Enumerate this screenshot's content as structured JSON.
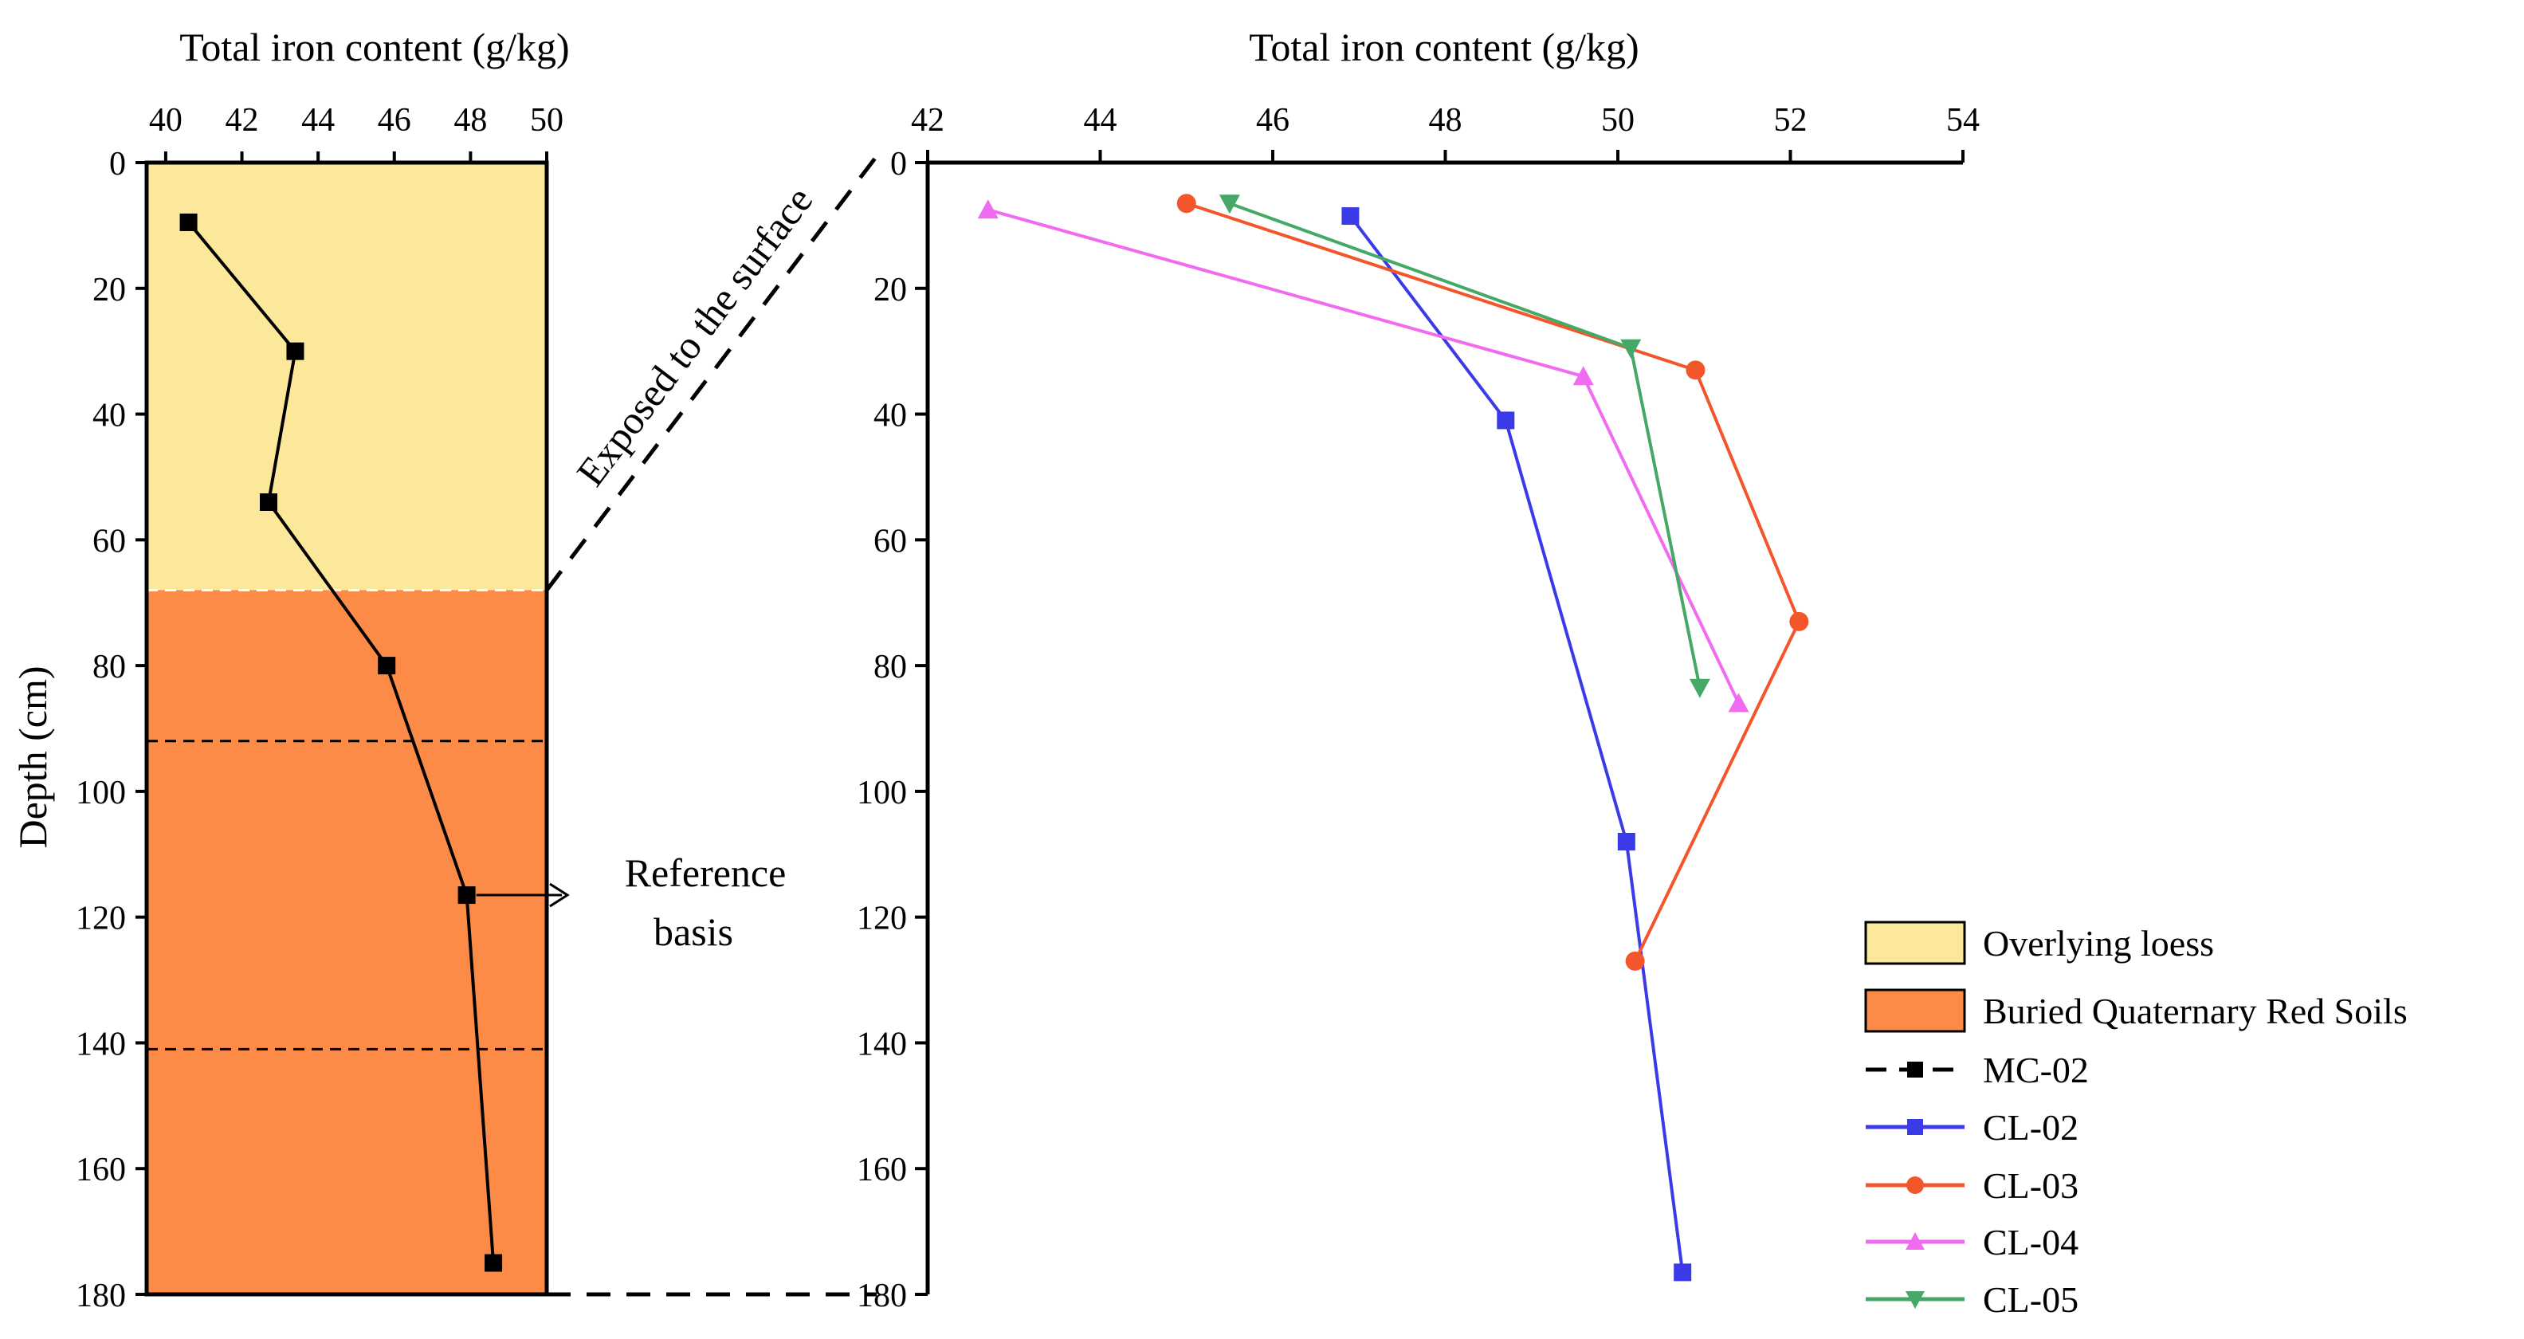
{
  "chart_data": [
    {
      "id": "left",
      "type": "line",
      "xlabel": "Total iron content (g/kg)",
      "ylabel": "Depth (cm)",
      "xlim": [
        39.5,
        50
      ],
      "ylim": [
        0,
        180
      ],
      "xticks": [
        40,
        42,
        44,
        46,
        48,
        50
      ],
      "yticks": [
        0,
        20,
        40,
        60,
        80,
        100,
        120,
        140,
        160,
        180
      ],
      "bands": [
        {
          "name": "Overlying loess",
          "from": 0,
          "to": 68,
          "color": "#FCE89A"
        },
        {
          "name": "Buried Quaternary Red Soils",
          "from": 68,
          "to": 180,
          "color": "#FC8B48"
        }
      ],
      "dividers": [
        68,
        92,
        141
      ],
      "series": [
        {
          "name": "MC-02",
          "color": "#000000",
          "marker": "square",
          "x": [
            40.6,
            43.4,
            42.7,
            45.8,
            47.9,
            48.6
          ],
          "y": [
            9.5,
            30,
            54,
            80,
            116.5,
            175
          ]
        }
      ]
    },
    {
      "id": "right",
      "type": "line",
      "xlabel": "Total iron content (g/kg)",
      "xlim": [
        42,
        54
      ],
      "ylim": [
        0,
        180
      ],
      "xticks": [
        42,
        44,
        46,
        48,
        50,
        52,
        54
      ],
      "yticks": [
        0,
        20,
        40,
        60,
        80,
        100,
        120,
        140,
        160,
        180
      ],
      "series": [
        {
          "name": "CL-02",
          "color": "#3A3AE8",
          "marker": "square",
          "x": [
            46.9,
            48.7,
            50.1,
            50.75
          ],
          "y": [
            8.5,
            41,
            108,
            176.5
          ]
        },
        {
          "name": "CL-03",
          "color": "#F2562A",
          "marker": "circle",
          "x": [
            45.0,
            50.9,
            52.1,
            50.2
          ],
          "y": [
            6.5,
            33,
            73,
            127
          ]
        },
        {
          "name": "CL-04",
          "color": "#F06BF0",
          "marker": "triangle-up",
          "x": [
            42.7,
            49.6,
            51.4
          ],
          "y": [
            7.5,
            34,
            86
          ]
        },
        {
          "name": "CL-05",
          "color": "#45A866",
          "marker": "triangle-down",
          "x": [
            45.5,
            50.15,
            50.95
          ],
          "y": [
            6.5,
            29.5,
            83.5
          ]
        }
      ]
    }
  ],
  "annotations": {
    "exposed": "Exposed to the surface",
    "reference_line1": "Reference",
    "reference_line2": "basis"
  },
  "legend": {
    "items": [
      {
        "label": "Overlying loess",
        "kind": "patch",
        "color": "#FCE89A"
      },
      {
        "label": "Buried Quaternary Red Soils",
        "kind": "patch",
        "color": "#FC8B48"
      },
      {
        "label": "MC-02",
        "kind": "line",
        "color": "#000000",
        "marker": "square",
        "dashed": true
      },
      {
        "label": "CL-02",
        "kind": "line",
        "color": "#3A3AE8",
        "marker": "square"
      },
      {
        "label": "CL-03",
        "kind": "line",
        "color": "#F2562A",
        "marker": "circle"
      },
      {
        "label": "CL-04",
        "kind": "line",
        "color": "#F06BF0",
        "marker": "triangle-up"
      },
      {
        "label": "CL-05",
        "kind": "line",
        "color": "#45A866",
        "marker": "triangle-down"
      }
    ]
  }
}
